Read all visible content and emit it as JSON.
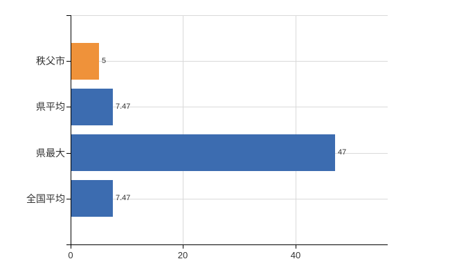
{
  "chart_data": {
    "type": "bar",
    "orientation": "horizontal",
    "categories": [
      "秩父市",
      "県平均",
      "県最大",
      "全国平均"
    ],
    "values": [
      5,
      7.47,
      47,
      7.47
    ],
    "value_labels": [
      "5",
      "7.47",
      "47",
      "7.47"
    ],
    "bar_colors": [
      "#ef923a",
      "#3c6cb0",
      "#3c6cb0",
      "#3c6cb0"
    ],
    "xlim": [
      0,
      56.4
    ],
    "x_ticks": [
      0,
      20,
      40
    ],
    "x_tick_labels": [
      "0",
      "20",
      "40"
    ],
    "grid": true,
    "legend": false
  },
  "colors": {
    "orange_bar": "#ef923a",
    "blue_bar": "#3c6cb0",
    "gridline": "#d9d9d9",
    "axis": "#000000",
    "label_text": "#333333",
    "background": "#ffffff"
  }
}
